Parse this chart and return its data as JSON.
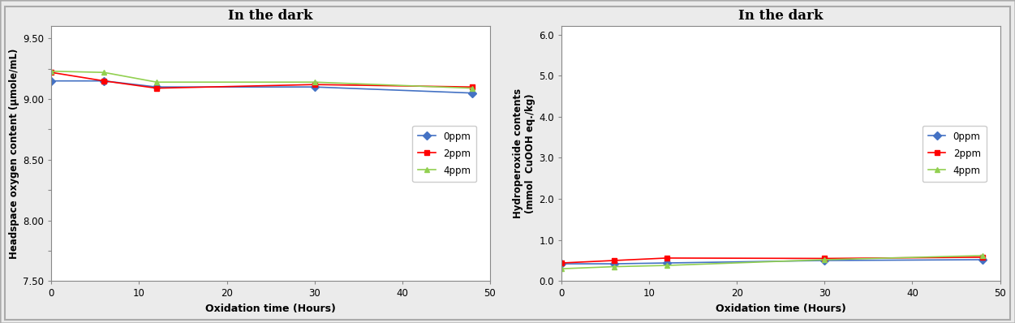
{
  "chart1": {
    "title": "In the dark",
    "xlabel": "Oxidation time (Hours)",
    "ylabel": "Headspace oxygen content (μmole/mL)",
    "x": [
      0,
      6,
      12,
      30,
      48
    ],
    "series": {
      "0ppm": {
        "color": "#4472C4",
        "marker": "D",
        "values": [
          9.15,
          9.15,
          9.1,
          9.1,
          9.05
        ]
      },
      "2ppm": {
        "color": "#FF0000",
        "marker": "s",
        "values": [
          9.22,
          9.15,
          9.09,
          9.12,
          9.1
        ]
      },
      "4ppm": {
        "color": "#92D050",
        "marker": "^",
        "values": [
          9.23,
          9.22,
          9.14,
          9.14,
          9.09
        ]
      }
    },
    "ylim": [
      7.5,
      9.6
    ],
    "yticks": [
      7.5,
      7.75,
      8.0,
      8.25,
      8.5,
      8.75,
      9.0,
      9.25,
      9.5
    ],
    "ytick_labels": [
      "7.50",
      "",
      "8.00",
      "",
      "8.50",
      "",
      "9.00",
      "",
      "9.50"
    ],
    "xlim": [
      0,
      50
    ],
    "xticks": [
      0,
      10,
      20,
      30,
      40,
      50
    ]
  },
  "chart2": {
    "title": "In the dark",
    "xlabel": "Oxidation time (Hours)",
    "ylabel": "Hydroperoxide contents\n(mmol  CuOOH eq./kg)",
    "x": [
      0,
      6,
      12,
      30,
      48
    ],
    "series": {
      "0ppm": {
        "color": "#4472C4",
        "marker": "D",
        "values": [
          0.42,
          0.42,
          0.44,
          0.5,
          0.52
        ]
      },
      "2ppm": {
        "color": "#FF0000",
        "marker": "s",
        "values": [
          0.44,
          0.5,
          0.56,
          0.55,
          0.58
        ]
      },
      "4ppm": {
        "color": "#92D050",
        "marker": "^",
        "values": [
          0.3,
          0.35,
          0.38,
          0.52,
          0.62
        ]
      }
    },
    "ylim": [
      0.0,
      6.2
    ],
    "yticks": [
      0.0,
      1.0,
      2.0,
      3.0,
      4.0,
      5.0,
      6.0
    ],
    "ytick_labels": [
      "0.0",
      "1.0",
      "2.0",
      "3.0",
      "4.0",
      "5.0",
      "6.0"
    ],
    "xlim": [
      0,
      50
    ],
    "xticks": [
      0,
      10,
      20,
      30,
      40,
      50
    ]
  },
  "legend_labels": [
    "0ppm",
    "2ppm",
    "4ppm"
  ],
  "fig_bg": "#EBEBEB",
  "plot_bg": "#FFFFFF",
  "border_color": "#AAAAAA"
}
